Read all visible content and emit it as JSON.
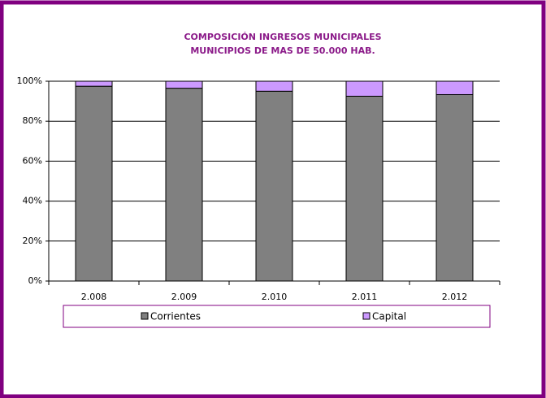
{
  "chart_data": {
    "type": "stacked_bar",
    "title": [
      "COMPOSICIÓN INGRESOS MUNICIPALES",
      "MUNICIPIOS DE MAS DE 50.000 HAB."
    ],
    "categories": [
      "2.008",
      "2.009",
      "2.010",
      "2.011",
      "2.012"
    ],
    "series": [
      {
        "name": "Corrientes",
        "color": "#808080",
        "values": [
          97.5,
          96.5,
          95,
          92.5,
          93.3
        ]
      },
      {
        "name": "Capital",
        "color": "#cc99ff",
        "values": [
          2.5,
          3.5,
          5,
          7.5,
          6.7
        ]
      }
    ],
    "ylim": [
      0,
      100
    ],
    "yticks": [
      {
        "value": 0,
        "label": "0%"
      },
      {
        "value": 20,
        "label": "20%"
      },
      {
        "value": 40,
        "label": "40%"
      },
      {
        "value": 60,
        "label": "60%"
      },
      {
        "value": 80,
        "label": "80%"
      },
      {
        "value": 100,
        "label": "100%"
      }
    ],
    "grid": true,
    "legend": "bottom"
  }
}
